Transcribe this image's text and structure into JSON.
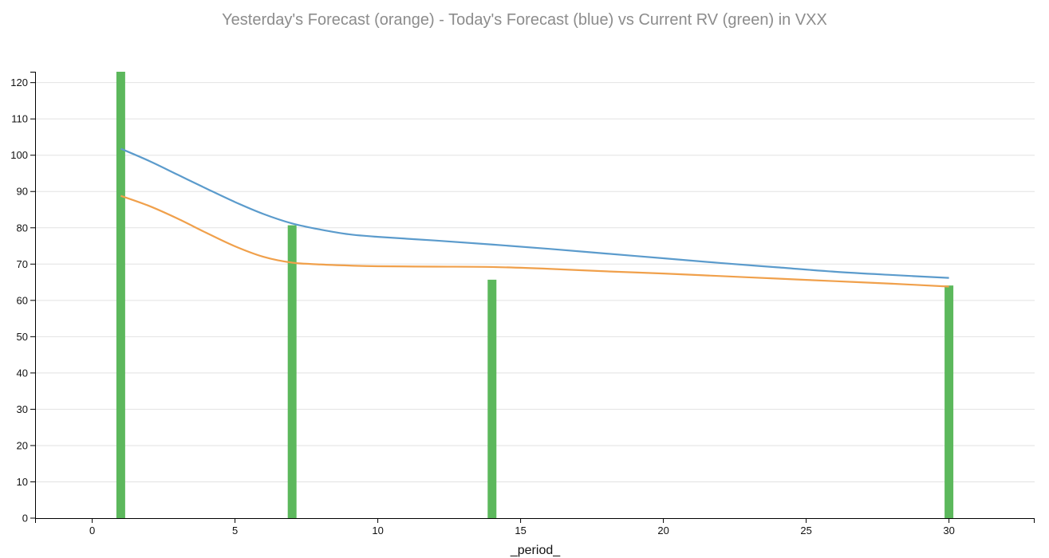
{
  "chart_data": {
    "type": "bar",
    "title": "Yesterday's Forecast (orange) - Today's Forecast (blue) vs Current RV (green) in VXX",
    "xlabel": "_period_",
    "ylabel": "",
    "xlim": [
      -2,
      33
    ],
    "ylim": [
      0,
      123
    ],
    "xticks": [
      0,
      5,
      10,
      15,
      20,
      25,
      30
    ],
    "yticks": [
      0,
      10,
      20,
      30,
      40,
      50,
      60,
      70,
      80,
      90,
      100,
      110,
      120
    ],
    "grid": "horizontal",
    "bars": {
      "color": "#5cb85c",
      "x": [
        1,
        7,
        14,
        30
      ],
      "values": [
        123,
        80.7,
        65.7,
        64.1
      ]
    },
    "series": [
      {
        "color": "#f0a04b",
        "x": [
          1,
          2,
          3,
          4,
          5,
          6,
          7,
          8,
          9,
          10,
          12,
          14,
          16,
          18,
          20,
          22,
          24,
          26,
          28,
          30
        ],
        "values": [
          88.8,
          86.0,
          82.5,
          78.6,
          74.9,
          72.0,
          70.4,
          69.9,
          69.6,
          69.4,
          69.3,
          69.2,
          68.7,
          68.0,
          67.4,
          66.7,
          66.0,
          65.3,
          64.6,
          63.8
        ]
      },
      {
        "color": "#5b9bcc",
        "x": [
          1,
          2,
          3,
          4,
          5,
          6,
          7,
          8,
          9,
          10,
          12,
          14,
          16,
          18,
          20,
          22,
          24,
          26,
          28,
          30
        ],
        "values": [
          101.8,
          98.4,
          94.6,
          90.8,
          87.1,
          83.8,
          81.2,
          79.5,
          78.2,
          77.5,
          76.5,
          75.4,
          74.2,
          72.9,
          71.6,
          70.3,
          69.1,
          67.9,
          67.0,
          66.2
        ]
      }
    ]
  }
}
